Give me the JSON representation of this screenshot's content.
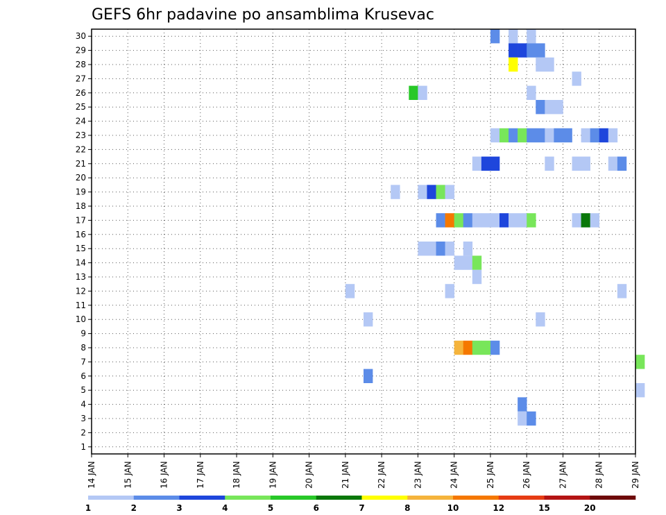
{
  "chart_data": {
    "type": "heatmap",
    "title": "GEFS 6hr padavine po ansamblima Krusevac",
    "y_ticks": [
      1,
      2,
      3,
      4,
      5,
      6,
      7,
      8,
      9,
      10,
      11,
      12,
      13,
      14,
      15,
      16,
      17,
      18,
      19,
      20,
      21,
      22,
      23,
      24,
      25,
      26,
      27,
      28,
      29,
      30
    ],
    "x_ticks": [
      "14 JAN",
      "15 JAN",
      "16 JAN",
      "17 JAN",
      "18 JAN",
      "19 JAN",
      "20 JAN",
      "21 JAN",
      "22 JAN",
      "23 JAN",
      "24 JAN",
      "25 JAN",
      "26 JAN",
      "27 JAN",
      "28 JAN",
      "29 JAN"
    ],
    "xlim_days": [
      14,
      29
    ],
    "ylim": [
      0.5,
      30.5
    ],
    "grid": true,
    "levels": [
      "1",
      "2",
      "3",
      "4",
      "5",
      "6",
      "7",
      "8",
      "10",
      "12",
      "15",
      "20"
    ],
    "palette": [
      "#b4c8f5",
      "#5c8ce8",
      "#1e46dc",
      "#78e65a",
      "#28c828",
      "#0a780a",
      "#ffff00",
      "#f5b43c",
      "#f57800",
      "#e63c14",
      "#b41414",
      "#6e0a0a"
    ],
    "cells": [
      [
        30,
        25.0,
        1
      ],
      [
        30,
        25.5,
        0
      ],
      [
        30,
        26.0,
        0
      ],
      [
        29,
        25.5,
        2
      ],
      [
        29,
        25.75,
        2
      ],
      [
        29,
        26.0,
        1
      ],
      [
        29,
        26.25,
        1
      ],
      [
        28,
        25.5,
        6
      ],
      [
        28,
        26.25,
        0
      ],
      [
        28,
        26.5,
        0
      ],
      [
        27,
        27.25,
        0
      ],
      [
        26,
        22.75,
        4
      ],
      [
        26,
        23.0,
        0
      ],
      [
        26,
        26.0,
        0
      ],
      [
        25,
        26.25,
        1
      ],
      [
        25,
        26.5,
        0
      ],
      [
        25,
        26.75,
        0
      ],
      [
        23,
        25.0,
        0
      ],
      [
        23,
        25.25,
        3
      ],
      [
        23,
        25.5,
        1
      ],
      [
        23,
        25.75,
        3
      ],
      [
        23,
        26.0,
        1
      ],
      [
        23,
        26.25,
        1
      ],
      [
        23,
        26.5,
        0
      ],
      [
        23,
        26.75,
        1
      ],
      [
        23,
        27.0,
        1
      ],
      [
        23,
        27.5,
        0
      ],
      [
        23,
        27.75,
        1
      ],
      [
        23,
        28.0,
        2
      ],
      [
        23,
        28.25,
        0
      ],
      [
        21,
        24.5,
        0
      ],
      [
        21,
        24.75,
        2
      ],
      [
        21,
        25.0,
        2
      ],
      [
        21,
        26.5,
        0
      ],
      [
        21,
        27.25,
        0
      ],
      [
        21,
        27.5,
        0
      ],
      [
        21,
        28.25,
        0
      ],
      [
        21,
        28.5,
        1
      ],
      [
        19,
        22.25,
        0
      ],
      [
        19,
        23.0,
        0
      ],
      [
        19,
        23.25,
        2
      ],
      [
        19,
        23.5,
        3
      ],
      [
        19,
        23.75,
        0
      ],
      [
        17,
        23.5,
        1
      ],
      [
        17,
        23.75,
        8
      ],
      [
        17,
        24.0,
        3
      ],
      [
        17,
        24.25,
        1
      ],
      [
        17,
        24.5,
        0
      ],
      [
        17,
        24.75,
        0
      ],
      [
        17,
        25.0,
        0
      ],
      [
        17,
        25.25,
        2
      ],
      [
        17,
        25.5,
        0
      ],
      [
        17,
        25.75,
        0
      ],
      [
        17,
        26.0,
        3
      ],
      [
        17,
        27.25,
        0
      ],
      [
        17,
        27.5,
        5
      ],
      [
        17,
        27.75,
        0
      ],
      [
        15,
        23.0,
        0
      ],
      [
        15,
        23.25,
        0
      ],
      [
        15,
        23.5,
        1
      ],
      [
        15,
        23.75,
        0
      ],
      [
        15,
        24.25,
        0
      ],
      [
        14,
        24.0,
        0
      ],
      [
        14,
        24.25,
        0
      ],
      [
        14,
        24.5,
        3
      ],
      [
        13,
        24.5,
        0
      ],
      [
        12,
        21.0,
        0
      ],
      [
        12,
        23.75,
        0
      ],
      [
        12,
        28.5,
        0
      ],
      [
        10,
        21.5,
        0
      ],
      [
        10,
        26.25,
        0
      ],
      [
        8,
        24.0,
        7
      ],
      [
        8,
        24.25,
        8
      ],
      [
        8,
        24.5,
        3
      ],
      [
        8,
        24.75,
        3
      ],
      [
        8,
        25.0,
        1
      ],
      [
        7,
        29.0,
        3
      ],
      [
        6,
        21.5,
        1
      ],
      [
        5,
        29.0,
        0
      ],
      [
        4,
        25.75,
        1
      ],
      [
        3,
        25.75,
        0
      ],
      [
        3,
        26.0,
        1
      ]
    ]
  }
}
